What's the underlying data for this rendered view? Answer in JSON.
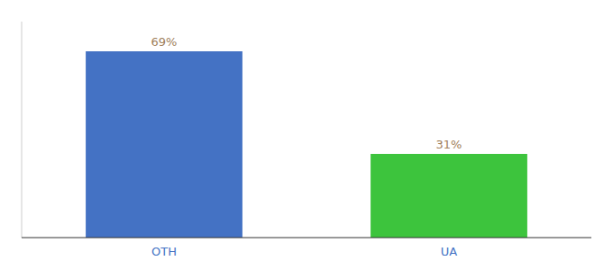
{
  "chart_data": {
    "type": "bar",
    "categories": [
      "OTH",
      "UA"
    ],
    "values": [
      69,
      31
    ],
    "value_labels": [
      "69%",
      "31%"
    ],
    "colors": [
      "#4472c4",
      "#3dc43d"
    ],
    "ylim": [
      0,
      80
    ],
    "data_labels": true,
    "tick_labels": "x",
    "grid": false
  }
}
